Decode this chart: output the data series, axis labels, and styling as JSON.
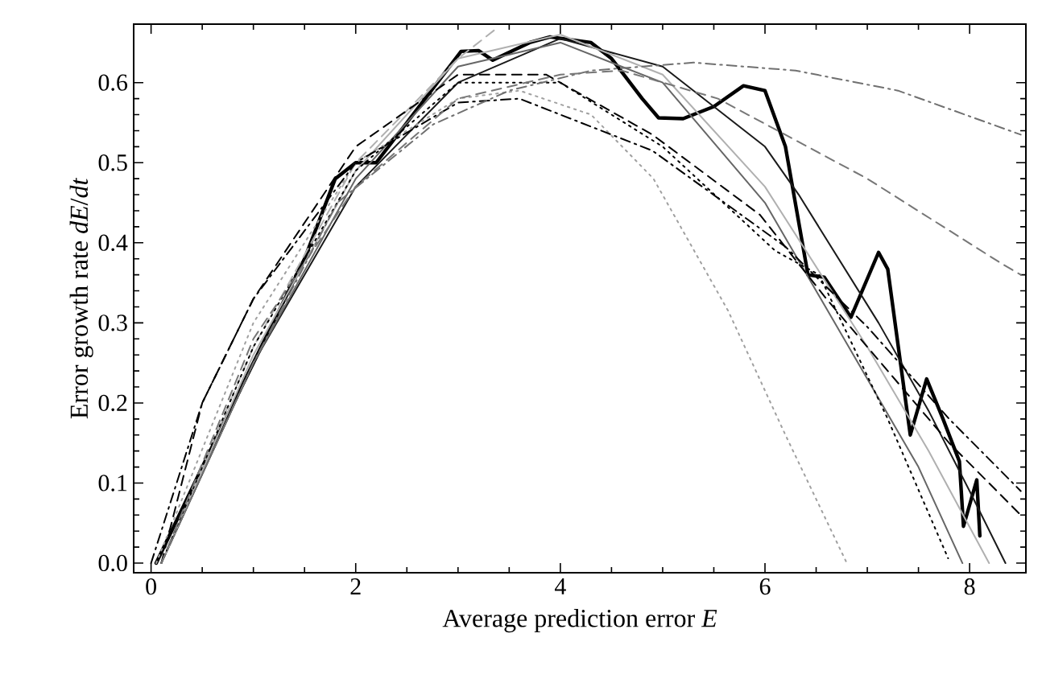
{
  "chart_data": {
    "type": "line",
    "xlabel": "Average prediction error *E*",
    "ylabel": "Error growth rate *dE*/*dt*",
    "xlim": [
      -0.17,
      8.55
    ],
    "ylim": [
      -0.012,
      0.673
    ],
    "xticks": [
      0,
      2,
      4,
      6,
      8
    ],
    "yticks": [
      {
        "value": 0,
        "label": "0.0"
      },
      {
        "value": 0.1,
        "label": "0.1"
      },
      {
        "value": 0.2,
        "label": "0.2"
      },
      {
        "value": 0.3,
        "label": "0.3"
      },
      {
        "value": 0.4,
        "label": "0.4"
      },
      {
        "value": 0.5,
        "label": "0.5"
      },
      {
        "value": 0.6,
        "label": "0.6"
      }
    ],
    "grid": false,
    "marker": "none",
    "series": [
      {
        "color": "#000000",
        "line_style": "solid",
        "x": [
          0.05,
          0.5,
          1,
          1.5,
          1.8,
          2,
          2.2,
          2.5,
          3.03,
          3.2,
          3.34,
          3.7,
          3.9,
          4.3,
          4.5,
          4.8,
          4.96,
          5.2,
          5.5,
          5.79,
          6.0,
          6.2,
          6.42,
          6.58,
          6.84,
          7.11,
          7.2,
          7.42,
          7.58,
          7.74,
          7.9,
          7.94,
          8.07,
          8.1
        ],
        "values": [
          0,
          0.12,
          0.25,
          0.38,
          0.48,
          0.5,
          0.5,
          0.55,
          0.639,
          0.64,
          0.628,
          0.65,
          0.657,
          0.65,
          0.63,
          0.58,
          0.556,
          0.555,
          0.57,
          0.596,
          0.59,
          0.52,
          0.36,
          0.357,
          0.307,
          0.388,
          0.367,
          0.16,
          0.23,
          0.18,
          0.127,
          0.046,
          0.104,
          0.034
        ]
      },
      {
        "color": "#1a1a1a",
        "line_style": "solid",
        "x": [
          0.1,
          1,
          2,
          3,
          4,
          5,
          6,
          6.33,
          7.11,
          7.6,
          8.0,
          8.35
        ],
        "values": [
          0,
          0.25,
          0.47,
          0.6,
          0.655,
          0.62,
          0.52,
          0.46,
          0.3,
          0.19,
          0.09,
          0
        ]
      },
      {
        "color": "#666666",
        "line_style": "solid",
        "x": [
          0.1,
          1,
          2,
          3,
          4,
          5,
          6,
          7,
          7.5,
          7.93
        ],
        "values": [
          0,
          0.25,
          0.48,
          0.62,
          0.65,
          0.6,
          0.45,
          0.23,
          0.12,
          0
        ]
      },
      {
        "color": "#b0b0b0",
        "line_style": "solid",
        "x": [
          0.1,
          1,
          2,
          3,
          4,
          5,
          6,
          7,
          7.6,
          8.19
        ],
        "values": [
          0,
          0.26,
          0.49,
          0.63,
          0.66,
          0.61,
          0.47,
          0.27,
          0.14,
          0
        ]
      },
      {
        "color": "#b0b0b0",
        "line_style": "dashed",
        "x": [
          0.1,
          1,
          2,
          3,
          3.4
        ],
        "values": [
          0,
          0.27,
          0.5,
          0.63,
          0.67
        ]
      },
      {
        "color": "#a0a0a0",
        "line_style": "dotted",
        "x": [
          0.05,
          1,
          2,
          3,
          3.6,
          4.3,
          4.91,
          5.64,
          6.2,
          6.8
        ],
        "values": [
          0,
          0.3,
          0.5,
          0.58,
          0.59,
          0.56,
          0.48,
          0.315,
          0.16,
          0
        ]
      },
      {
        "color": "#000000",
        "line_style": "dotted",
        "x": [
          0.1,
          1,
          2,
          3,
          4,
          5,
          6.1,
          6.53,
          7.2,
          7.79
        ],
        "values": [
          0,
          0.27,
          0.49,
          0.6,
          0.6,
          0.52,
          0.39,
          0.36,
          0.18,
          0.006
        ]
      },
      {
        "color": "#000000",
        "line_style": "dashed",
        "x": [
          0.1,
          0.5,
          1,
          2,
          3,
          3.86,
          4.9,
          5.95,
          6.6,
          7.2,
          7.8,
          8.5
        ],
        "values": [
          0,
          0.2,
          0.33,
          0.52,
          0.61,
          0.61,
          0.535,
          0.435,
          0.33,
          0.24,
          0.15,
          0.06
        ]
      },
      {
        "color": "#000000",
        "line_style": "dashdot",
        "x": [
          0,
          0.5,
          1,
          2,
          3,
          3.6,
          4.9,
          6.2,
          7.0,
          7.8,
          8.5
        ],
        "values": [
          0,
          0.2,
          0.33,
          0.5,
          0.575,
          0.58,
          0.515,
          0.395,
          0.295,
          0.18,
          0.09
        ]
      },
      {
        "color": "#707070",
        "line_style": "dashdot",
        "x": [
          0.1,
          1,
          1.82,
          2.76,
          3.5,
          4.3,
          5.3,
          6.3,
          7.3,
          8.5
        ],
        "values": [
          0,
          0.25,
          0.45,
          0.548,
          0.59,
          0.615,
          0.625,
          0.615,
          0.59,
          0.535
        ]
      },
      {
        "color": "#777777",
        "line_style": "dashed",
        "x": [
          0.1,
          1,
          2,
          3,
          4,
          4.6,
          5.54,
          7,
          8.3,
          8.5
        ],
        "values": [
          0,
          0.28,
          0.47,
          0.58,
          0.61,
          0.615,
          0.58,
          0.48,
          0.375,
          0.36
        ]
      }
    ]
  }
}
